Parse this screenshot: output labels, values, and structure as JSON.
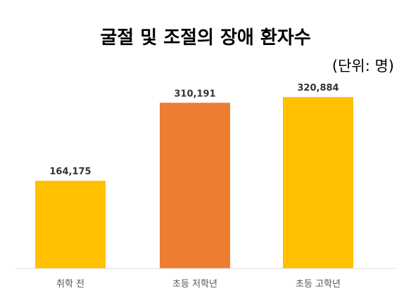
{
  "chart_data": {
    "type": "bar",
    "title": "굴절 및 조절의 장애 환자수",
    "unit_label": "(단위: 명)",
    "xlabel": "",
    "ylabel": "",
    "categories": [
      "취학 전",
      "초등 저학년",
      "초등 고학년"
    ],
    "values": [
      164175,
      310191,
      320884
    ],
    "value_labels": [
      "164,175",
      "310,191",
      "320,884"
    ],
    "colors": [
      "#ffc000",
      "#ed7d31",
      "#ffc000"
    ],
    "ylim": [
      0,
      350000
    ],
    "grid": false,
    "legend": "none"
  }
}
